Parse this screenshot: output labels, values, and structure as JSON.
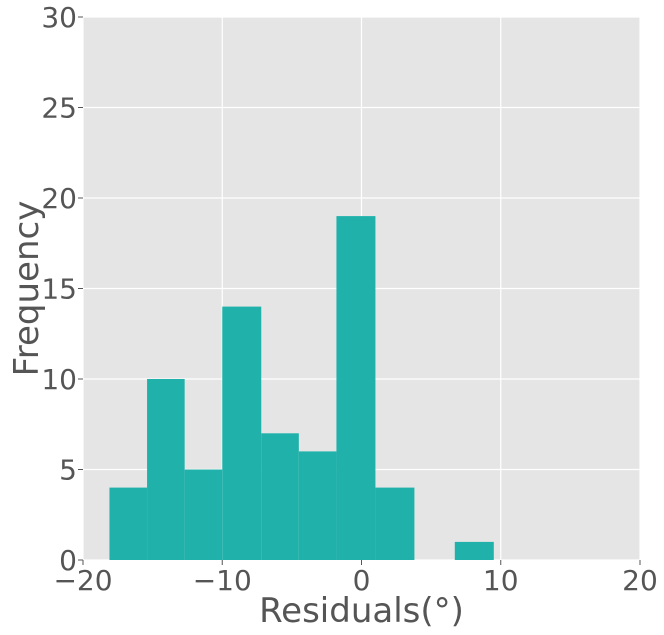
{
  "chart_data": {
    "type": "bar",
    "subtype": "histogram",
    "title": "",
    "xlabel": "Residuals(°)",
    "ylabel": "Frequency",
    "xlim": [
      -20,
      20
    ],
    "ylim": [
      0,
      30
    ],
    "xticks": [
      -20,
      -10,
      0,
      10,
      20
    ],
    "xtick_labels": [
      "−20",
      "−10",
      "0",
      "10",
      "20"
    ],
    "yticks": [
      0,
      5,
      10,
      15,
      20,
      25,
      30
    ],
    "ytick_labels": [
      "0",
      "5",
      "10",
      "15",
      "20",
      "25",
      "30"
    ],
    "grid": true,
    "bin_edges": [
      -18.1,
      -15.4,
      -12.7,
      -10.0,
      -7.2,
      -4.5,
      -1.8,
      1.0,
      3.8,
      6.7,
      9.5
    ],
    "counts": [
      4,
      10,
      5,
      14,
      7,
      6,
      19,
      4,
      0,
      1
    ],
    "bar_color": "#20B2AA",
    "background_color": "#E5E5E5",
    "grid_color": "#FFFFFF"
  }
}
